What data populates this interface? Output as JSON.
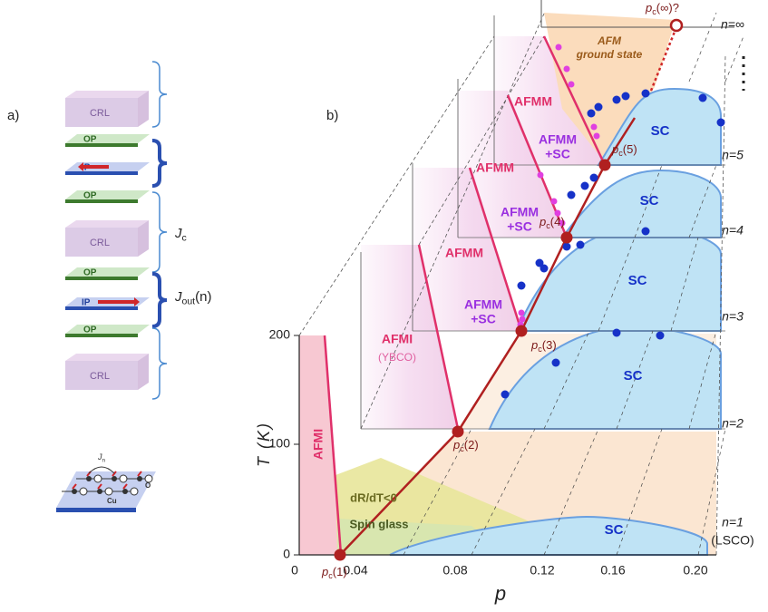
{
  "panel_a": {
    "label": "a)",
    "layers": [
      "CRL",
      "OP",
      "IP",
      "OP",
      "CRL",
      "OP",
      "IP",
      "OP",
      "CRL"
    ],
    "jc": {
      "symbol": "J",
      "subscript": "c"
    },
    "jout": {
      "symbol": "J",
      "subscript": "out",
      "argument": "(n)"
    },
    "inset": {
      "jn": {
        "symbol": "J",
        "subscript": "n"
      },
      "cu": "Cu",
      "o": "O"
    }
  },
  "panel_b": {
    "label": "b)",
    "y_axis_title": "T (K)",
    "x_axis_title": "p",
    "y_ticks": [
      "0",
      "100",
      "200"
    ],
    "x_ticks": [
      "0",
      "0.04",
      "0.08",
      "0.12",
      "0.16",
      "0.20"
    ],
    "layers": [
      {
        "name": "n=1",
        "note": "(LSCO)"
      },
      {
        "name": "n=2"
      },
      {
        "name": "n=3"
      },
      {
        "name": "n=4"
      },
      {
        "name": "n=5"
      },
      {
        "name": "n=∞"
      }
    ],
    "critical_points": [
      {
        "base": "p",
        "sub": "c",
        "arg": "(1)"
      },
      {
        "base": "p",
        "sub": "c",
        "arg": "(2)"
      },
      {
        "base": "p",
        "sub": "c",
        "arg": "(3)"
      },
      {
        "base": "p",
        "sub": "c",
        "arg": "(4)"
      },
      {
        "base": "p",
        "sub": "c",
        "arg": "(5)"
      },
      {
        "base": "p",
        "sub": "c",
        "arg": "(∞)?"
      }
    ],
    "regions": {
      "afmi_front": "AFMI",
      "afmi_ybco": "AFMI",
      "ybco": "(YBCO)",
      "drdt": "dR/dT<0",
      "spin_glass": "Spin glass",
      "sc": [
        "SC",
        "SC",
        "SC",
        "SC",
        "SC"
      ],
      "afmm": [
        "AFMM",
        "AFMM",
        "AFMM"
      ],
      "afmm_sc": [
        [
          "AFMM",
          "+SC"
        ],
        [
          "AFMM",
          "+SC"
        ],
        [
          "AFMM",
          "+SC"
        ]
      ],
      "afm_ground": [
        "AFM",
        "ground state"
      ]
    }
  }
}
